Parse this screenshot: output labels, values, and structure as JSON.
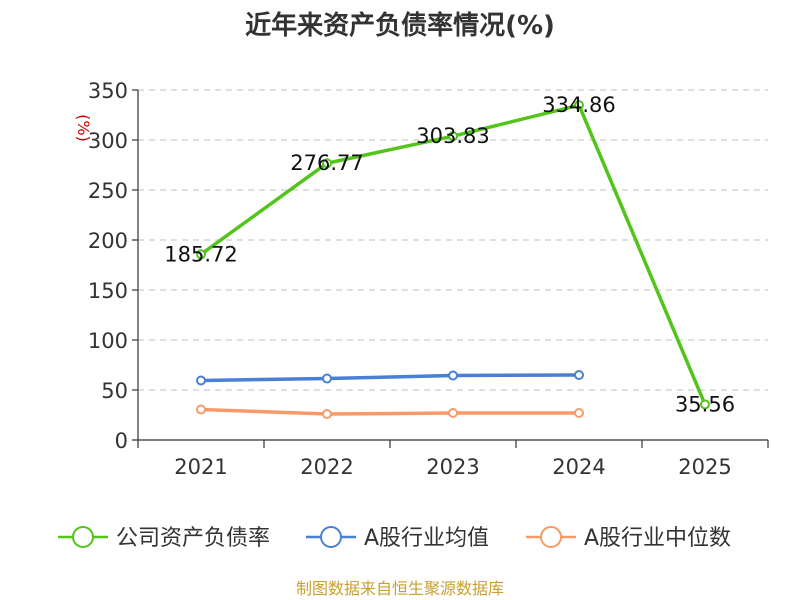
{
  "chart_data": {
    "type": "line",
    "title": "近年来资产负债率情况(%)",
    "ylabel": "(%)",
    "categories": [
      "2021",
      "2022",
      "2023",
      "2024",
      "2025"
    ],
    "ylim": [
      0,
      350
    ],
    "yticks": [
      0,
      50,
      100,
      150,
      200,
      250,
      300,
      350
    ],
    "grid": true,
    "legend_position": "bottom",
    "series": [
      {
        "name": "公司资产负债率",
        "color": "#52c41a",
        "values": [
          185.72,
          276.77,
          303.83,
          334.86,
          35.56
        ],
        "labels": [
          "185.72",
          "276.77",
          "303.83",
          "334.86",
          "35.56"
        ]
      },
      {
        "name": "A股行业均值",
        "color": "#4a7fd6",
        "values": [
          59.5,
          61.5,
          64.5,
          65.0,
          null
        ]
      },
      {
        "name": "A股行业中位数",
        "color": "#f79a6a",
        "values": [
          30.5,
          26.0,
          27.0,
          27.0,
          null
        ]
      }
    ],
    "source": "制图数据来自恒生聚源数据库"
  }
}
